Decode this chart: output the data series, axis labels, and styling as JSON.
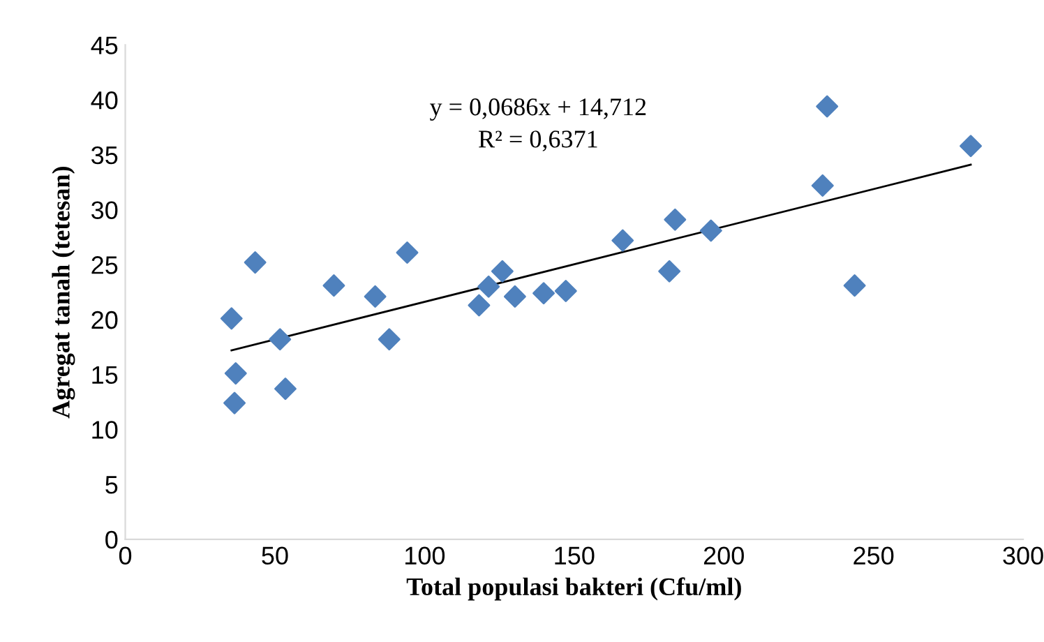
{
  "chart_data": {
    "type": "scatter",
    "xlabel": "Total populasi bakteri (Cfu/ml)",
    "ylabel": "Agregat tanah (tetesan)",
    "series": [
      {
        "color": "#4f81bd",
        "marker": "diamond",
        "x": [
          35.5,
          36.9,
          36.5,
          43.4,
          51.7,
          53.5,
          69.7,
          83.5,
          88.2,
          94.2,
          118.2,
          121.4,
          126,
          130.2,
          139.8,
          147.2,
          166.2,
          181.8,
          183.7,
          195.7,
          233,
          234.5,
          243.7,
          282.5
        ],
        "values": [
          20.1,
          15.1,
          12.4,
          25.2,
          18.2,
          13.7,
          23.1,
          22.1,
          18.2,
          26.1,
          21.3,
          23,
          24.4,
          22.1,
          22.4,
          22.6,
          27.2,
          24.4,
          29.1,
          28.1,
          32.2,
          39.4,
          23.1,
          35.8
        ]
      },
      {
        "type": "line",
        "color": "#000000",
        "marker": "none",
        "line_style": "solid",
        "x": [
          35.5,
          282.5
        ],
        "values": [
          17.2,
          34.1
        ]
      }
    ],
    "annotations": [
      "y = 0,0686x + 14,712",
      "R² = 0,6371"
    ],
    "xlim": [
      0,
      300
    ],
    "xticks": [
      0,
      50,
      100,
      150,
      200,
      250,
      300
    ],
    "ylim": [
      0,
      45
    ],
    "yticks": [
      0,
      5,
      10,
      15,
      20,
      25,
      30,
      35,
      40,
      45
    ],
    "grid": false,
    "legend": false
  }
}
